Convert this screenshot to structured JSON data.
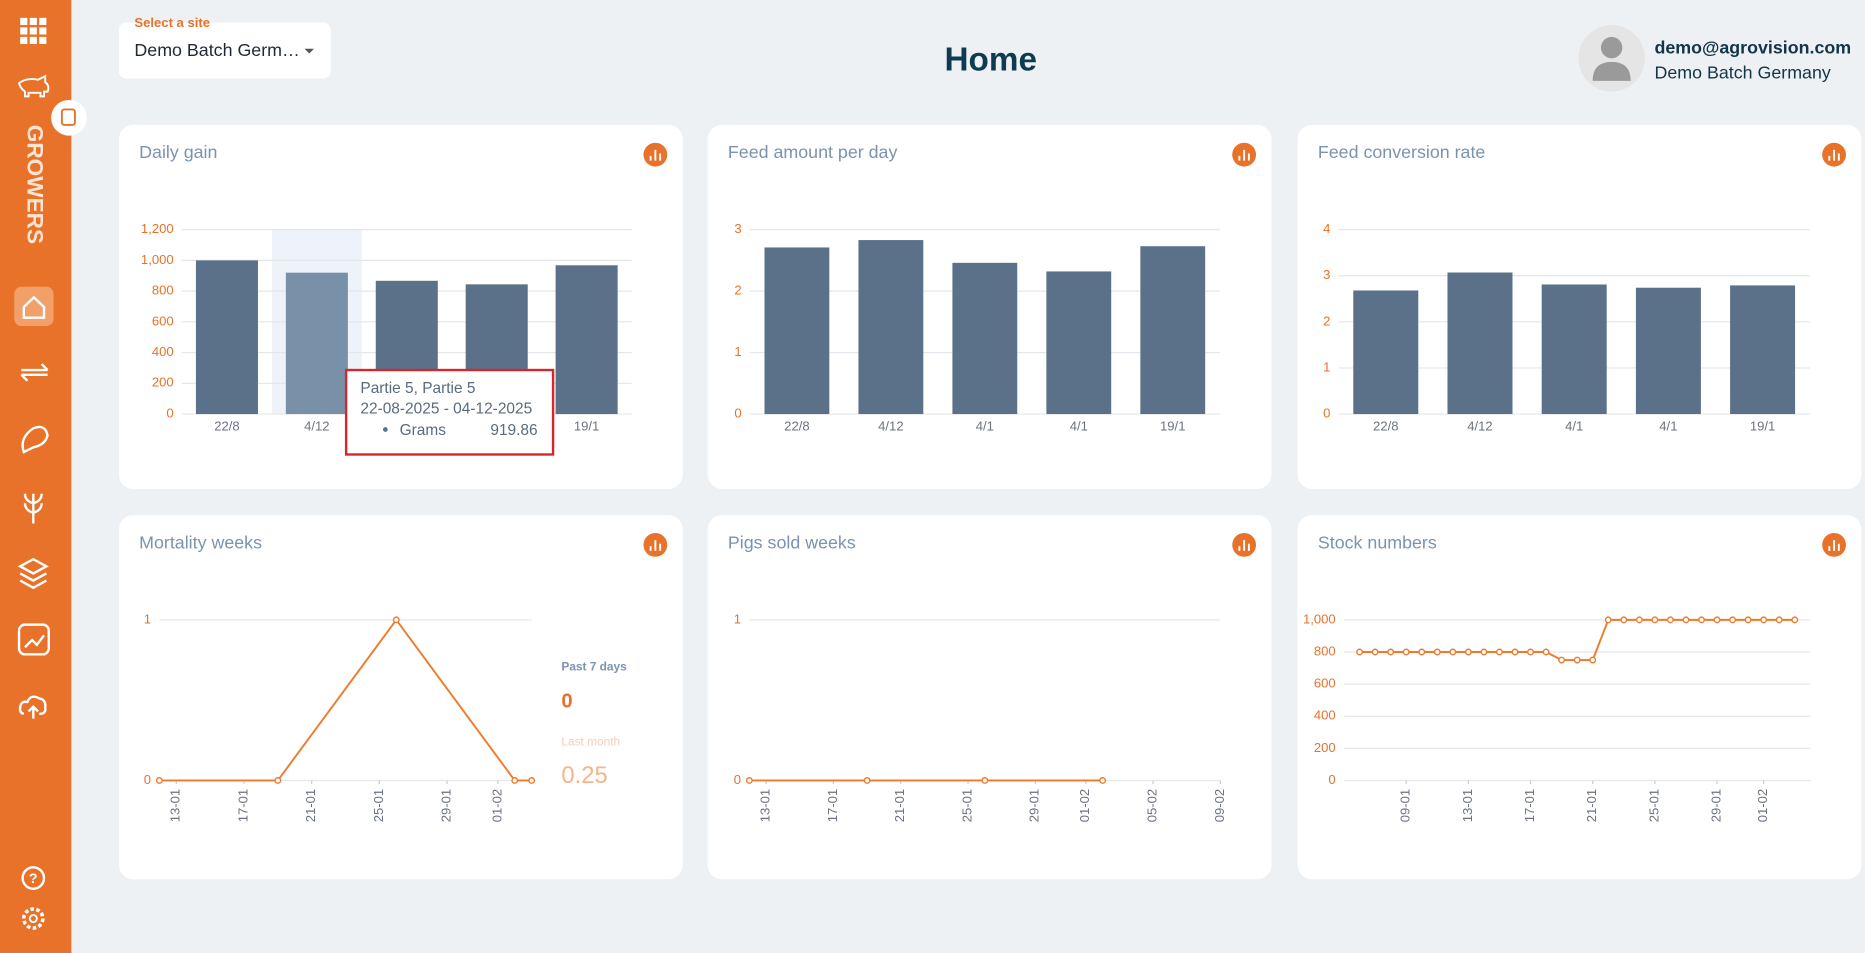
{
  "header": {
    "site_label": "Select a site",
    "site": "Demo Batch Germ…",
    "title": "Home",
    "user_email": "demo@agrovision.com",
    "user_site": "Demo Batch Germany"
  },
  "sidebar": {
    "section": "GROWERS"
  },
  "chart_data": [
    {
      "type": "bar",
      "title": "Daily gain",
      "categories": [
        "22/8",
        "4/12",
        "4/1",
        "4/1",
        "19/1"
      ],
      "values": [
        1000,
        919.86,
        867,
        844,
        968
      ],
      "color": "#5a7189",
      "highlight_color": "#7890a8",
      "ylim": [
        0,
        1200
      ],
      "yticks": [
        0,
        200,
        400,
        600,
        800,
        {
          "value": 1000,
          "label": "1,000"
        },
        {
          "value": 1200,
          "label": "1,200"
        }
      ],
      "grid": true
    },
    {
      "type": "bar",
      "title": "Feed amount per day",
      "categories": [
        "22/8",
        "4/12",
        "4/1",
        "4/1",
        "19/1"
      ],
      "values": [
        2.71,
        2.83,
        2.46,
        2.32,
        2.73
      ],
      "color": "#5a7189",
      "ylim": [
        0,
        3
      ],
      "yticks": [
        0,
        1,
        2,
        3
      ],
      "grid": true
    },
    {
      "type": "bar",
      "title": "Feed conversion rate",
      "categories": [
        "22/8",
        "4/12",
        "4/1",
        "4/1",
        "19/1"
      ],
      "values": [
        2.68,
        3.07,
        2.81,
        2.74,
        2.79
      ],
      "color": "#5a7189",
      "ylim": [
        0,
        4
      ],
      "yticks": [
        0,
        1,
        2,
        3,
        4
      ],
      "grid": true
    },
    {
      "type": "line",
      "title": "Mortality weeks",
      "x": [
        "12-01",
        "19-01",
        "26-01",
        "02-02",
        "03-02"
      ],
      "values": [
        0,
        0,
        1,
        0,
        0
      ],
      "color": "#ef7a2b",
      "xlim": [
        "12-01",
        "03-02"
      ],
      "xticks": [
        "13-01",
        "17-01",
        "21-01",
        "25-01",
        "29-01",
        "01-02"
      ],
      "ylim": [
        0,
        1
      ],
      "yticks": [
        0,
        1
      ],
      "grid": true
    },
    {
      "type": "line",
      "title": "Pigs sold weeks",
      "x": [
        "12-01",
        "19-01",
        "26-01",
        "02-02"
      ],
      "values": [
        0,
        0,
        0,
        0
      ],
      "color": "#ef7a2b",
      "xlim": [
        "12-01",
        "09-02"
      ],
      "xticks": [
        "13-01",
        "17-01",
        "21-01",
        "25-01",
        "29-01",
        "01-02",
        "05-02",
        "09-02"
      ],
      "ylim": [
        0,
        1
      ],
      "yticks": [
        0,
        1
      ],
      "grid": true
    },
    {
      "type": "line",
      "title": "Stock numbers",
      "x": [
        "06-01",
        "07-01",
        "08-01",
        "09-01",
        "10-01",
        "11-01",
        "12-01",
        "13-01",
        "14-01",
        "15-01",
        "16-01",
        "17-01",
        "18-01",
        "19-01",
        "20-01",
        "21-01",
        "22-01",
        "23-01",
        "24-01",
        "25-01",
        "26-01",
        "27-01",
        "28-01",
        "29-01",
        "30-01",
        "31-01",
        "01-02",
        "02-02",
        "03-02"
      ],
      "values": [
        800,
        800,
        800,
        800,
        800,
        800,
        800,
        800,
        800,
        800,
        800,
        800,
        800,
        750,
        750,
        750,
        1000,
        1000,
        1000,
        1000,
        1000,
        1000,
        1000,
        1000,
        1000,
        1000,
        1000,
        1000,
        1000
      ],
      "color": "#ef7a2b",
      "xlim": [
        "05-01",
        "04-02"
      ],
      "xticks": [
        "09-01",
        "13-01",
        "17-01",
        "21-01",
        "25-01",
        "29-01",
        "01-02"
      ],
      "ylim": [
        0,
        1000
      ],
      "yticks": [
        0,
        200,
        400,
        600,
        800,
        {
          "value": 1000,
          "label": "1,000"
        }
      ],
      "grid": true
    }
  ],
  "tooltip": {
    "title": "Partie 5, Partie 5",
    "dates": "22-08-2025 - 04-12-2025",
    "series": "Grams"
  },
  "mortality_summary": {
    "past_7_days_label": "Past 7 days",
    "past_7_days": 0,
    "last_month_label": "Last month",
    "last_month": 0.25
  }
}
